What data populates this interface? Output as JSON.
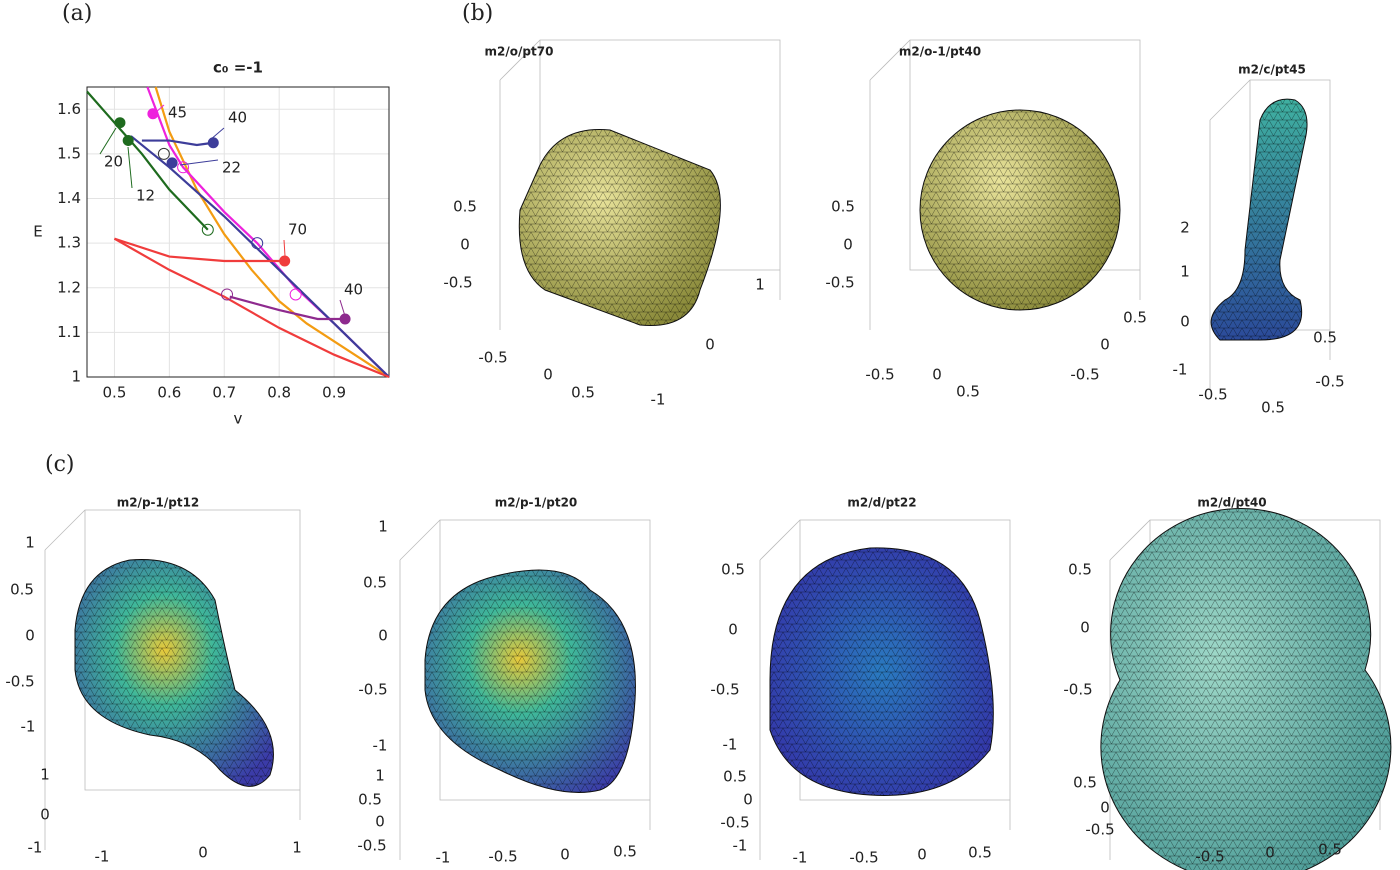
{
  "panel_labels": {
    "a": "(a)",
    "b": "(b)",
    "c": "(c)"
  },
  "chart_data": {
    "type": "line",
    "title": "c₀ =-1",
    "x_label": "v",
    "y_label": "E",
    "xlim": [
      0.45,
      1
    ],
    "xticks": [
      0.5,
      0.6,
      0.7,
      0.8,
      0.9
    ],
    "ylim": [
      1,
      1.65
    ],
    "yticks": [
      1,
      1.1,
      1.2,
      1.3,
      1.4,
      1.5,
      1.6
    ],
    "grid": true,
    "series": [
      {
        "color": "#f39c12",
        "x": [
          0.575,
          0.6,
          0.65,
          0.7,
          0.75,
          0.8,
          0.85,
          0.9,
          0.95,
          1
        ],
        "values": [
          1.65,
          1.55,
          1.42,
          1.32,
          1.24,
          1.17,
          1.12,
          1.08,
          1.04,
          1
        ]
      },
      {
        "color": "#ee22dd",
        "x": [
          0.56,
          0.6,
          0.625,
          0.7,
          0.76,
          0.83,
          0.9,
          1
        ],
        "values": [
          1.65,
          1.52,
          1.47,
          1.37,
          1.3,
          1.2,
          1.12,
          1
        ]
      },
      {
        "color": "#3d3d9a",
        "x": [
          0.53,
          0.6,
          0.7,
          0.8,
          0.9,
          1
        ],
        "values": [
          1.54,
          1.47,
          1.36,
          1.24,
          1.12,
          1
        ]
      },
      {
        "color": "#1e6b1e",
        "x": [
          0.45,
          0.5,
          0.55,
          0.6,
          0.67
        ],
        "values": [
          1.64,
          1.57,
          1.5,
          1.42,
          1.33
        ]
      },
      {
        "color": "#f03c3c",
        "x": [
          0.5,
          0.6,
          0.7,
          0.8,
          0.9,
          1
        ],
        "values": [
          1.31,
          1.24,
          1.18,
          1.11,
          1.05,
          1
        ]
      },
      {
        "color": "#f03c3c",
        "x": [
          0.5,
          0.6,
          0.7,
          0.81
        ],
        "values": [
          1.31,
          1.27,
          1.26,
          1.26
        ]
      },
      {
        "color": "#8e2a8e",
        "x": [
          0.71,
          0.8,
          0.87,
          0.92
        ],
        "values": [
          1.18,
          1.15,
          1.13,
          1.13
        ]
      },
      {
        "color": "#3d3d9a",
        "x": [
          0.55,
          0.6,
          0.65,
          0.68
        ],
        "values": [
          1.53,
          1.53,
          1.52,
          1.525
        ]
      }
    ],
    "markers": [
      {
        "x": 0.57,
        "y": 1.59,
        "color": "#ee22dd",
        "filled": true
      },
      {
        "x": 0.68,
        "y": 1.525,
        "color": "#3d3d9a",
        "filled": true
      },
      {
        "x": 0.605,
        "y": 1.48,
        "color": "#3d3d9a",
        "filled": true
      },
      {
        "x": 0.51,
        "y": 1.57,
        "color": "#1e6b1e",
        "filled": true
      },
      {
        "x": 0.525,
        "y": 1.53,
        "color": "#1e6b1e",
        "filled": true
      },
      {
        "x": 0.81,
        "y": 1.26,
        "color": "#f03c3c",
        "filled": true
      },
      {
        "x": 0.92,
        "y": 1.13,
        "color": "#8e2a8e",
        "filled": true
      },
      {
        "x": 0.59,
        "y": 1.5,
        "color": "#333333",
        "filled": false
      },
      {
        "x": 0.625,
        "y": 1.47,
        "color": "#ee22dd",
        "filled": false
      },
      {
        "x": 0.67,
        "y": 1.33,
        "color": "#1e6b1e",
        "filled": false
      },
      {
        "x": 0.76,
        "y": 1.3,
        "color": "#3d3d9a",
        "filled": false
      },
      {
        "x": 0.705,
        "y": 1.185,
        "color": "#8e2a8e",
        "filled": false
      },
      {
        "x": 0.83,
        "y": 1.185,
        "color": "#ee22dd",
        "filled": false
      }
    ],
    "annotations": [
      {
        "text": "45",
        "color": "#ee22dd"
      },
      {
        "text": "40",
        "color": "#3d3d9a"
      },
      {
        "text": "22",
        "color": "#3d3d9a"
      },
      {
        "text": "20",
        "color": "#1e6b1e"
      },
      {
        "text": "12",
        "color": "#1e6b1e"
      },
      {
        "text": "70",
        "color": "#f03c3c"
      },
      {
        "text": "40",
        "color": "#8e2a8e"
      }
    ]
  },
  "surfaces": [
    {
      "title": "m2/o/pt70",
      "z_ticks": [
        "0.5",
        "0",
        "-0.5"
      ],
      "x_ticks": [
        "-0.5",
        "0",
        "0.5"
      ],
      "y_ticks": [
        "1",
        "0",
        "-1"
      ]
    },
    {
      "title": "m2/o-1/pt40",
      "z_ticks": [
        "0.5",
        "0",
        "-0.5"
      ],
      "x_ticks": [
        "-0.5",
        "0",
        "0.5"
      ],
      "y_ticks": [
        "0.5",
        "0",
        "-0.5"
      ]
    },
    {
      "title": "m2/c/pt45",
      "z_ticks": [
        "2",
        "1",
        "0",
        "-1"
      ],
      "x_ticks": [
        "-0.5",
        "0.5"
      ],
      "y_ticks": [
        "0.5",
        "-0.5"
      ]
    },
    {
      "title": "m2/p-1/pt12",
      "z_ticks": [
        "1",
        "0.5",
        "0",
        "-0.5",
        "-1"
      ],
      "x_ticks": [
        "-1",
        "0",
        "1"
      ],
      "y_ticks": [
        "1",
        "0",
        "-1"
      ]
    },
    {
      "title": "m2/p-1/pt20",
      "z_ticks": [
        "1",
        "0.5",
        "0",
        "-0.5",
        "-1"
      ],
      "x_ticks": [
        "-1",
        "-0.5",
        "0",
        "0.5"
      ],
      "y_ticks": [
        "1",
        "0.5",
        "0",
        "-0.5"
      ]
    },
    {
      "title": "m2/d/pt22",
      "z_ticks": [
        "0.5",
        "0",
        "-0.5",
        "-1"
      ],
      "x_ticks": [
        "-1",
        "-0.5",
        "0",
        "0.5"
      ],
      "y_ticks": [
        "0.5",
        "0",
        "-0.5",
        "-1"
      ]
    },
    {
      "title": "m2/d/pt40",
      "z_ticks": [
        "0.5",
        "0",
        "-0.5"
      ],
      "x_ticks": [
        "-0.5",
        "0",
        "0.5"
      ],
      "y_ticks": [
        "0.5",
        "0",
        "-0.5"
      ]
    }
  ]
}
